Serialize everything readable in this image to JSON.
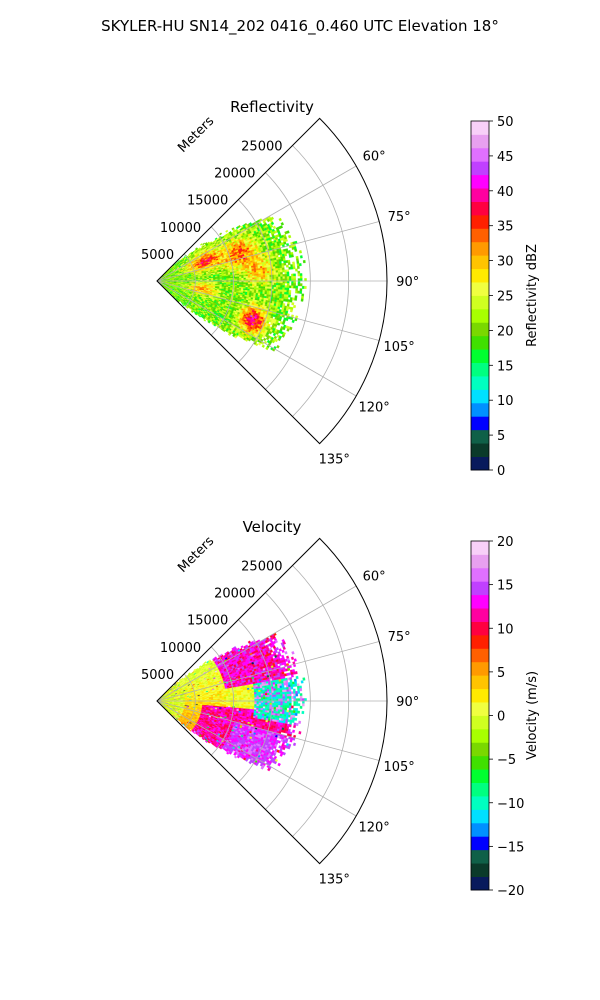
{
  "figure_title": "SKYLER-HU  SN14_202  0416_0.460 UTC Elevation 18°",
  "chart_data": [
    {
      "type": "heatmap",
      "projection": "polar-sector",
      "title": "Reflectivity",
      "radial_label": "Meters",
      "radial_ticks": [
        5000,
        10000,
        15000,
        20000,
        25000
      ],
      "radial_tick_labels": [
        "5000",
        "10000",
        "15000",
        "20000",
        "25000"
      ],
      "r_max": 30000,
      "angle_ticks": [
        60,
        75,
        90,
        105,
        120,
        135
      ],
      "angle_tick_labels": [
        "60°",
        "75°",
        "90°",
        "105°",
        "120°",
        "135°"
      ],
      "angle_range": [
        45,
        135
      ],
      "grid": true,
      "colorbar": {
        "label": "Reflectivity dBZ",
        "min": 0,
        "max": 50,
        "ticks": [
          0,
          5,
          10,
          15,
          20,
          25,
          30,
          35,
          40,
          45,
          50
        ],
        "tick_labels": [
          "0",
          "5",
          "10",
          "15",
          "20",
          "25",
          "30",
          "35",
          "40",
          "45",
          "50"
        ],
        "colors": [
          "#081a5c",
          "#0a3a2a",
          "#0f6048",
          "#0000ff",
          "#0090ff",
          "#00e0ff",
          "#00ffc0",
          "#00ff80",
          "#00ff30",
          "#40e000",
          "#7ad800",
          "#a8ff00",
          "#d0ff20",
          "#f0ff40",
          "#ffea00",
          "#ffc400",
          "#ff9a00",
          "#ff6000",
          "#ff2000",
          "#ff0040",
          "#ff00a0",
          "#ff00ff",
          "#c040ff",
          "#e070ff",
          "#e8a0f0",
          "#f8d0f8"
        ]
      }
    },
    {
      "type": "heatmap",
      "projection": "polar-sector",
      "title": "Velocity",
      "radial_label": "Meters",
      "radial_ticks": [
        5000,
        10000,
        15000,
        20000,
        25000
      ],
      "radial_tick_labels": [
        "5000",
        "10000",
        "15000",
        "20000",
        "25000"
      ],
      "r_max": 30000,
      "angle_ticks": [
        60,
        75,
        90,
        105,
        120,
        135
      ],
      "angle_tick_labels": [
        "60°",
        "75°",
        "90°",
        "105°",
        "120°",
        "135°"
      ],
      "angle_range": [
        45,
        135
      ],
      "grid": true,
      "colorbar": {
        "label": "Velocity (m/s)",
        "min": -20,
        "max": 20,
        "ticks": [
          -20,
          -15,
          -10,
          -5,
          0,
          5,
          10,
          15,
          20
        ],
        "tick_labels": [
          "−20",
          "−15",
          "−10",
          "−5",
          "0",
          "5",
          "10",
          "15",
          "20"
        ],
        "colors": [
          "#081a5c",
          "#0a3a2a",
          "#0f6048",
          "#0000ff",
          "#0090ff",
          "#00e0ff",
          "#00ffc0",
          "#00ff80",
          "#00ff30",
          "#40e000",
          "#7ad800",
          "#a8ff00",
          "#d0ff20",
          "#f0ff40",
          "#ffea00",
          "#ffc400",
          "#ff9a00",
          "#ff6000",
          "#ff2000",
          "#ff0040",
          "#ff00a0",
          "#ff00ff",
          "#c040ff",
          "#e070ff",
          "#e8a0f0",
          "#f8d0f8"
        ]
      }
    }
  ]
}
